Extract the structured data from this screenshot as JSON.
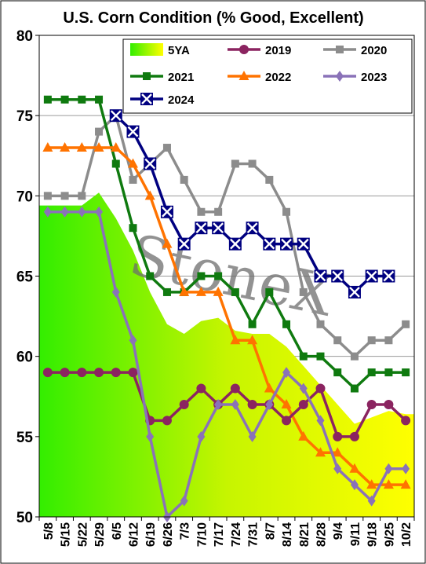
{
  "chart_data": {
    "type": "line",
    "title": "U.S. Corn Condition (% Good, Excellent)",
    "watermark": "StoneX",
    "ylim": [
      50,
      80
    ],
    "yticks": [
      50,
      55,
      60,
      65,
      70,
      75,
      80
    ],
    "categories": [
      "5/8",
      "5/15",
      "5/22",
      "5/29",
      "6/5",
      "6/12",
      "6/19",
      "6/26",
      "7/3",
      "7/10",
      "7/17",
      "7/24",
      "7/31",
      "8/7",
      "8/14",
      "8/21",
      "8/28",
      "9/4",
      "9/11",
      "9/18",
      "9/25",
      "10/2"
    ],
    "legend_position": "top-right",
    "colors": {
      "5YA_top": "#33ee00",
      "5YA_bottom": "#ffff00",
      "2019": "#8b2460",
      "2020": "#8c8c8c",
      "2021": "#0f7a0f",
      "2022": "#ff7300",
      "2023": "#8a72b8",
      "2024": "#000080"
    },
    "series": [
      {
        "name": "5YA",
        "kind": "area",
        "values": [
          69.4,
          69.4,
          69.4,
          70.2,
          68.6,
          66.6,
          64.0,
          62.0,
          61.4,
          62.2,
          62.4,
          61.6,
          61.4,
          61.4,
          60.6,
          59.4,
          58.2,
          57.0,
          55.8,
          56.2,
          56.6,
          56.4
        ]
      },
      {
        "name": "2019",
        "kind": "line",
        "marker": "circle",
        "values": [
          59,
          59,
          59,
          59,
          59,
          59,
          56,
          56,
          57,
          58,
          57,
          58,
          57,
          57,
          56,
          57,
          58,
          55,
          55,
          57,
          57,
          56
        ]
      },
      {
        "name": "2020",
        "kind": "line",
        "marker": "square",
        "values": [
          70,
          70,
          70,
          74,
          75,
          71,
          72,
          73,
          71,
          69,
          69,
          72,
          72,
          71,
          69,
          64,
          62,
          61,
          60,
          61,
          61,
          62
        ]
      },
      {
        "name": "2021",
        "kind": "line",
        "marker": "square",
        "values": [
          76,
          76,
          76,
          76,
          72,
          68,
          65,
          64,
          64,
          65,
          65,
          64,
          62,
          64,
          62,
          60,
          60,
          59,
          58,
          59,
          59,
          59
        ]
      },
      {
        "name": "2022",
        "kind": "line",
        "marker": "triangle",
        "values": [
          73,
          73,
          73,
          73,
          73,
          72,
          70,
          67,
          64,
          64,
          64,
          61,
          61,
          58,
          57,
          55,
          54,
          54,
          53,
          52,
          52,
          52
        ]
      },
      {
        "name": "2023",
        "kind": "line",
        "marker": "diamond",
        "values": [
          69,
          69,
          69,
          69,
          64,
          61,
          55,
          50,
          51,
          55,
          57,
          57,
          55,
          57,
          59,
          58,
          56,
          53,
          52,
          51,
          53,
          53
        ]
      },
      {
        "name": "2024",
        "kind": "line",
        "marker": "xbox",
        "values": [
          null,
          null,
          null,
          null,
          75,
          74,
          72,
          69,
          67,
          68,
          68,
          67,
          68,
          67,
          67,
          67,
          65,
          65,
          64,
          65,
          65,
          null
        ]
      }
    ]
  }
}
